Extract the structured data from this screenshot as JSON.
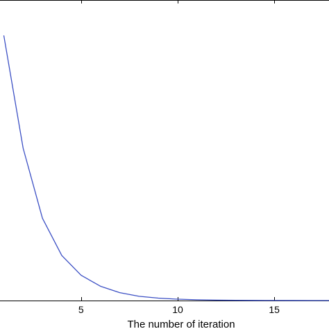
{
  "chart_data": {
    "type": "line",
    "title": "",
    "xlabel": "The number of iteration",
    "ylabel": "",
    "grid": false,
    "xlim": [
      0.3,
      18.3
    ],
    "ylim": [
      0,
      1
    ],
    "x_ticks": [
      5,
      10,
      15
    ],
    "x_tick_labels": [
      "5",
      "10",
      "15"
    ],
    "series": [
      {
        "color": "#3b4fc4",
        "x": [
          1,
          2,
          3,
          4,
          5,
          6,
          7,
          8,
          9,
          10,
          11,
          12,
          13,
          14,
          15,
          16,
          17,
          18
        ],
        "y": [
          0.87,
          0.5,
          0.27,
          0.148,
          0.083,
          0.047,
          0.026,
          0.014,
          0.008,
          0.0045,
          0.0025,
          0.0014,
          0.0008,
          0.0004,
          0.0002,
          0.0001,
          0.0,
          0.0
        ]
      }
    ]
  }
}
